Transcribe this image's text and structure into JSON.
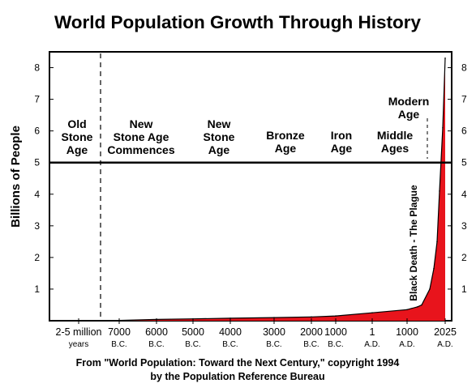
{
  "chart_data": {
    "type": "area",
    "title": "World Population Growth Through History",
    "ylabel": "Billions of People",
    "ylim": [
      0,
      8.5
    ],
    "y_ticks_left": [
      "1",
      "2",
      "3",
      "4",
      "5",
      "6",
      "7",
      "8"
    ],
    "y_ticks_right": [
      "1",
      "2",
      "3",
      "4",
      "5",
      "6",
      "7",
      "8"
    ],
    "x_ticks": [
      {
        "line1": "2-5 million",
        "line2": "years"
      },
      {
        "line1": "7000",
        "line2": "B.C."
      },
      {
        "line1": "6000",
        "line2": "B.C."
      },
      {
        "line1": "5000",
        "line2": "B.C."
      },
      {
        "line1": "4000",
        "line2": "B.C."
      },
      {
        "line1": "3000",
        "line2": "B.C."
      },
      {
        "line1": "2000",
        "line2": "B.C."
      },
      {
        "line1": "1000",
        "line2": "B.C."
      },
      {
        "line1": "1",
        "line2": "A.D."
      },
      {
        "line1": "1000",
        "line2": "A.D."
      },
      {
        "line1": "2025",
        "line2": "A.D."
      }
    ],
    "eras": [
      {
        "lines": [
          "Old",
          "Stone",
          "Age"
        ]
      },
      {
        "lines": [
          "New",
          "Stone Age",
          "Commences"
        ]
      },
      {
        "lines": [
          "New",
          "Stone",
          "Age"
        ]
      },
      {
        "lines": [
          "Bronze",
          "Age"
        ]
      },
      {
        "lines": [
          "Iron",
          "Age"
        ]
      },
      {
        "lines": [
          "Middle",
          "Ages"
        ]
      },
      {
        "lines": [
          "Modern",
          "Age"
        ]
      }
    ],
    "annotation": "Black Death - The Plague",
    "series": [
      {
        "values": [
          {
            "x": "2-5 million years",
            "y": 0.005
          },
          {
            "x": "7000 B.C.",
            "y": 0.01
          },
          {
            "x": "6000 B.C.",
            "y": 0.04
          },
          {
            "x": "5000 B.C.",
            "y": 0.06
          },
          {
            "x": "4000 B.C.",
            "y": 0.08
          },
          {
            "x": "3000 B.C.",
            "y": 0.1
          },
          {
            "x": "2000 B.C.",
            "y": 0.12
          },
          {
            "x": "1000 B.C.",
            "y": 0.15
          },
          {
            "x": "1 A.D.",
            "y": 0.25
          },
          {
            "x": "1000 A.D.",
            "y": 0.35
          },
          {
            "x": "1350 A.D.",
            "y": 0.44
          },
          {
            "x": "1500 A.D.",
            "y": 0.5
          },
          {
            "x": "1800 A.D.",
            "y": 1.0
          },
          {
            "x": "1900 A.D.",
            "y": 1.65
          },
          {
            "x": "1950 A.D.",
            "y": 2.5
          },
          {
            "x": "1975 A.D.",
            "y": 4.1
          },
          {
            "x": "2000 A.D.",
            "y": 6.1
          },
          {
            "x": "2025 A.D.",
            "y": 8.3
          }
        ]
      }
    ],
    "colors": {
      "fill": "#e8141c",
      "line": "#000000",
      "marker_line": "#000000"
    },
    "grid": false,
    "legend": "none"
  },
  "source": {
    "line1": "From \"World Population: Toward the Next Century,\" copyright 1994",
    "line2": "by the Population Reference Bureau"
  }
}
